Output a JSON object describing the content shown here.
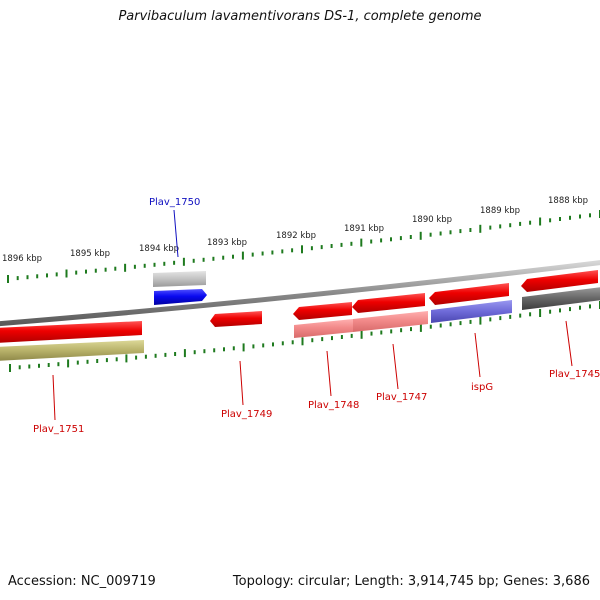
{
  "title": "Parvibaculum lavamentivorans DS-1, complete genome",
  "footer": {
    "accession": "Accession: NC_009719",
    "topology": "Topology: circular; Length: 3,914,745 bp; Genes: 3,686"
  },
  "colors": {
    "backbone": "#8a8a8a",
    "ruler_tick": "#1e7a1e",
    "label_red": "#cc0000",
    "label_blue": "#1010c0"
  },
  "ruler_labels": [
    "1896 kbp",
    "1895 kbp",
    "1894 kbp",
    "1893 kbp",
    "1892 kbp",
    "1891 kbp",
    "1890 kbp",
    "1889 kbp",
    "1888 kbp"
  ],
  "genes": [
    {
      "id": "plav_1750",
      "label": "Plav_1750",
      "label_color": "#1010c0"
    },
    {
      "id": "plav_1751",
      "label": "Plav_1751",
      "label_color": "#cc0000"
    },
    {
      "id": "plav_1749",
      "label": "Plav_1749",
      "label_color": "#cc0000"
    },
    {
      "id": "plav_1748",
      "label": "Plav_1748",
      "label_color": "#cc0000"
    },
    {
      "id": "plav_1747",
      "label": "Plav_1747",
      "label_color": "#cc0000"
    },
    {
      "id": "ispg",
      "label": "ispG",
      "label_color": "#cc0000"
    },
    {
      "id": "plav_1745",
      "label": "Plav_1745",
      "label_color": "#cc0000"
    }
  ]
}
